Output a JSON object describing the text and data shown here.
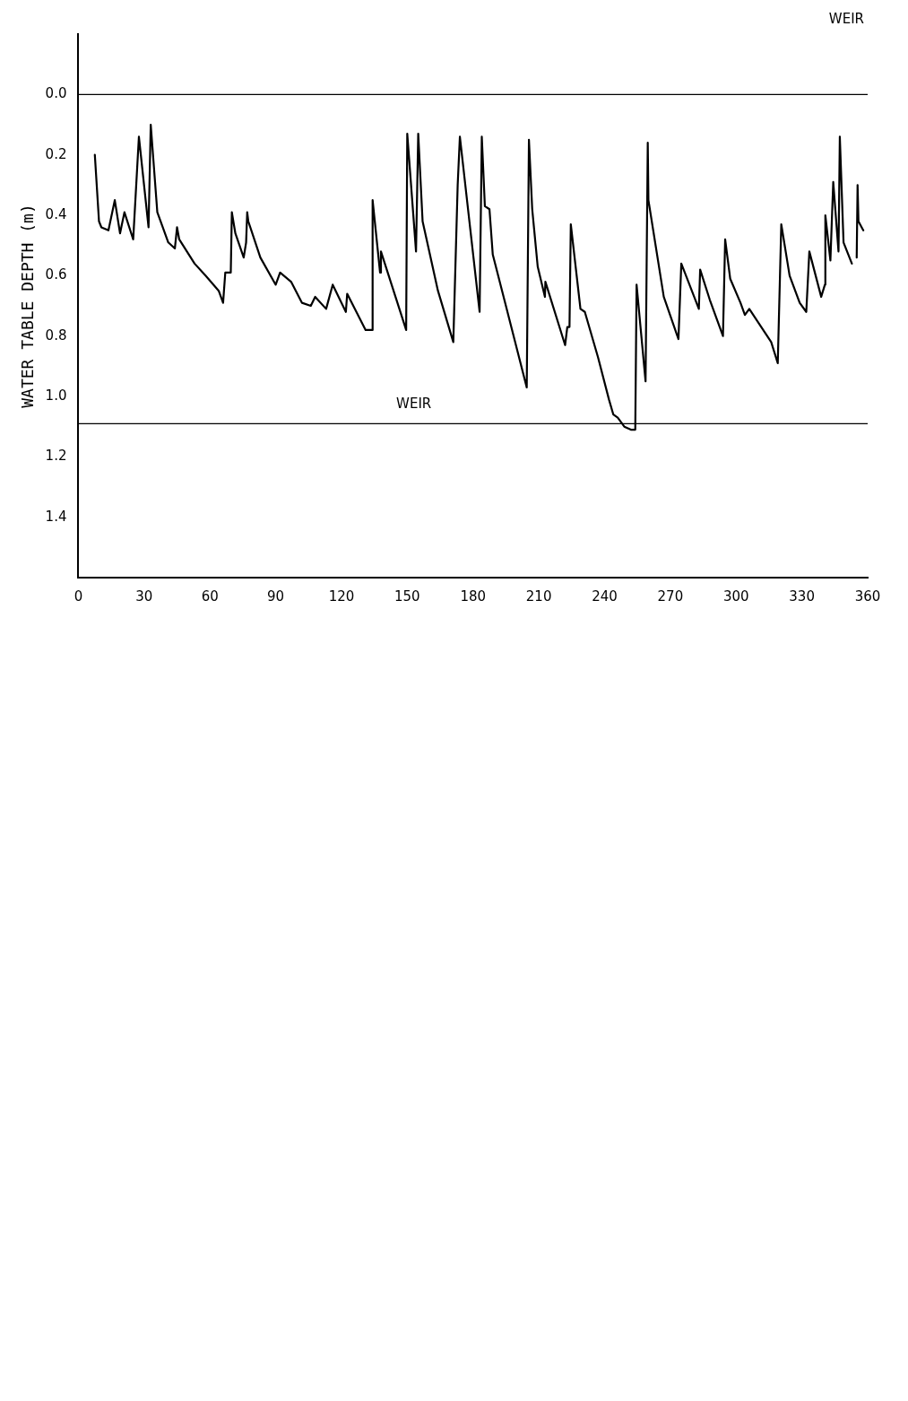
{
  "chart_data": {
    "type": "line",
    "ylabel": "WATER TABLE DEPTH (m)",
    "xlim": [
      0,
      360
    ],
    "xticks": [
      0,
      30,
      60,
      90,
      120,
      150,
      180,
      210,
      240,
      270,
      300,
      330,
      360
    ],
    "ylim": [
      1.6,
      -0.2
    ],
    "yticks": [
      {
        "value": 0,
        "label": "0.0"
      },
      0.2,
      0.4,
      0.6,
      0.8,
      {
        "value": 1,
        "label": "1.0"
      },
      1.2,
      1.4
    ],
    "grid": false,
    "legend": false,
    "marker": "none",
    "line_style": "solid",
    "ref_lines": [
      {
        "axis": "y",
        "value": 0,
        "label": null
      },
      {
        "axis": "y",
        "value": 1.09,
        "label": "WEIR"
      }
    ],
    "annotations": [
      "WEIR"
    ],
    "series": [
      {
        "color": "#000000",
        "x": [
          7.5,
          9.4,
          10.5,
          13.7,
          16.6,
          19,
          21,
          25,
          27.6,
          32,
          33,
          36,
          41,
          44,
          45,
          46,
          53,
          58,
          64,
          66,
          67,
          69.5,
          70,
          71.6,
          75.4,
          76.5,
          77,
          77.5,
          83,
          90,
          92,
          97,
          102,
          106,
          108,
          113,
          116,
          122,
          122.6,
          131,
          134,
          134.2,
          137.6,
          138,
          149.5,
          150,
          154,
          155,
          157,
          164,
          171,
          173,
          174,
          183,
          184,
          185.4,
          187.5,
          189,
          195,
          204.5,
          205.5,
          207,
          209.5,
          212.8,
          213,
          222,
          223,
          224,
          224.6,
          229,
          231,
          237,
          242,
          244,
          246,
          249,
          252,
          254,
          254.6,
          258.7,
          259.7,
          260,
          267,
          273.7,
          275,
          283,
          283.6,
          288,
          294,
          295,
          297.3,
          302,
          304,
          306,
          316,
          319,
          320.6,
          324.4,
          329,
          332,
          333.4,
          338.8,
          340.5,
          340.7,
          343,
          344.3,
          346.7,
          347.3,
          349,
          352.8,
          354,
          355,
          355.4,
          355.8,
          358
        ],
        "values": [
          0.2,
          0.42,
          0.44,
          0.45,
          0.35,
          0.46,
          0.39,
          0.48,
          0.14,
          0.44,
          0.1,
          0.39,
          0.49,
          0.51,
          0.44,
          0.48,
          0.56,
          0.6,
          0.65,
          0.69,
          0.59,
          0.59,
          0.39,
          0.46,
          0.54,
          0.49,
          0.39,
          0.42,
          0.54,
          0.63,
          0.59,
          0.62,
          0.69,
          0.7,
          0.67,
          0.71,
          0.63,
          0.72,
          0.66,
          0.78,
          0.78,
          0.35,
          0.59,
          0.52,
          0.78,
          0.13,
          0.52,
          0.13,
          0.42,
          0.65,
          0.82,
          0.3,
          0.14,
          0.72,
          0.14,
          0.37,
          0.38,
          0.53,
          0.7,
          0.97,
          0.15,
          0.38,
          0.57,
          0.67,
          0.62,
          0.83,
          0.77,
          0.77,
          0.43,
          0.71,
          0.72,
          0.87,
          1.01,
          1.06,
          1.07,
          1.1,
          1.11,
          1.11,
          0.63,
          0.95,
          0.16,
          0.35,
          0.67,
          0.81,
          0.56,
          0.71,
          0.58,
          0.68,
          0.8,
          0.48,
          0.61,
          0.69,
          0.73,
          0.71,
          0.82,
          0.89,
          0.43,
          0.6,
          0.69,
          0.72,
          0.52,
          0.67,
          0.63,
          0.4,
          0.55,
          0.29,
          0.52,
          0.14,
          0.49,
          0.56,
          null,
          0.54,
          0.3,
          0.42,
          0.45
        ]
      }
    ]
  }
}
